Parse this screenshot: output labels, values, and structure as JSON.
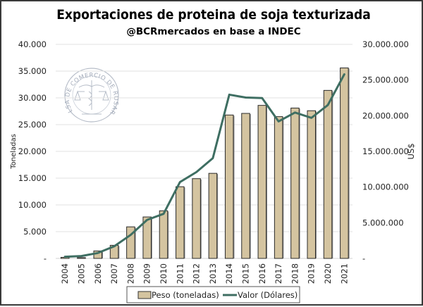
{
  "chart_data": {
    "type": "bar+line",
    "title": "Exportaciones de proteina de soja texturizada",
    "subtitle": "@BCRmercados en base a INDEC",
    "categories": [
      "2004",
      "2005",
      "2006",
      "2007",
      "2008",
      "2009",
      "2010",
      "2011",
      "2012",
      "2013",
      "2014",
      "2015",
      "2016",
      "2017",
      "2018",
      "2019",
      "2020",
      "2021"
    ],
    "series": [
      {
        "name": "Peso (toneladas)",
        "type": "bar",
        "axis": "left",
        "color": "#D4C4A0",
        "values": [
          200,
          150,
          1400,
          2450,
          5900,
          7750,
          8900,
          13400,
          14900,
          15900,
          26800,
          27100,
          28600,
          26500,
          28100,
          27600,
          31400,
          35600
        ]
      },
      {
        "name": "Valor (Dólares)",
        "type": "line",
        "axis": "right",
        "color": "#3E6E62",
        "values": [
          230000,
          330000,
          760000,
          1700000,
          3300000,
          5400000,
          6250000,
          10700000,
          12100000,
          14050000,
          22950000,
          22550000,
          22470000,
          19200000,
          20450000,
          19700000,
          21500000,
          25800000
        ]
      }
    ],
    "ylabel": "Toneladas",
    "ylabel_right": "US$",
    "ylim": [
      0,
      40000
    ],
    "ylim_right": [
      0,
      30000000
    ],
    "yticks": [
      "-",
      "5.000",
      "10.000",
      "15.000",
      "20.000",
      "25.000",
      "30.000",
      "35.000",
      "40.000"
    ],
    "yticks_right": [
      "-",
      "5.000.000",
      "10.000.000",
      "15.000.000",
      "20.000.000",
      "25.000.000",
      "30.000.000"
    ],
    "grid": true,
    "legend": {
      "placement": "bottom-center",
      "entries": [
        "Peso (toneladas)",
        "Valor (Dólares)"
      ]
    },
    "watermark": "BOLSA DE COMERCIO DE ROSARIO"
  }
}
